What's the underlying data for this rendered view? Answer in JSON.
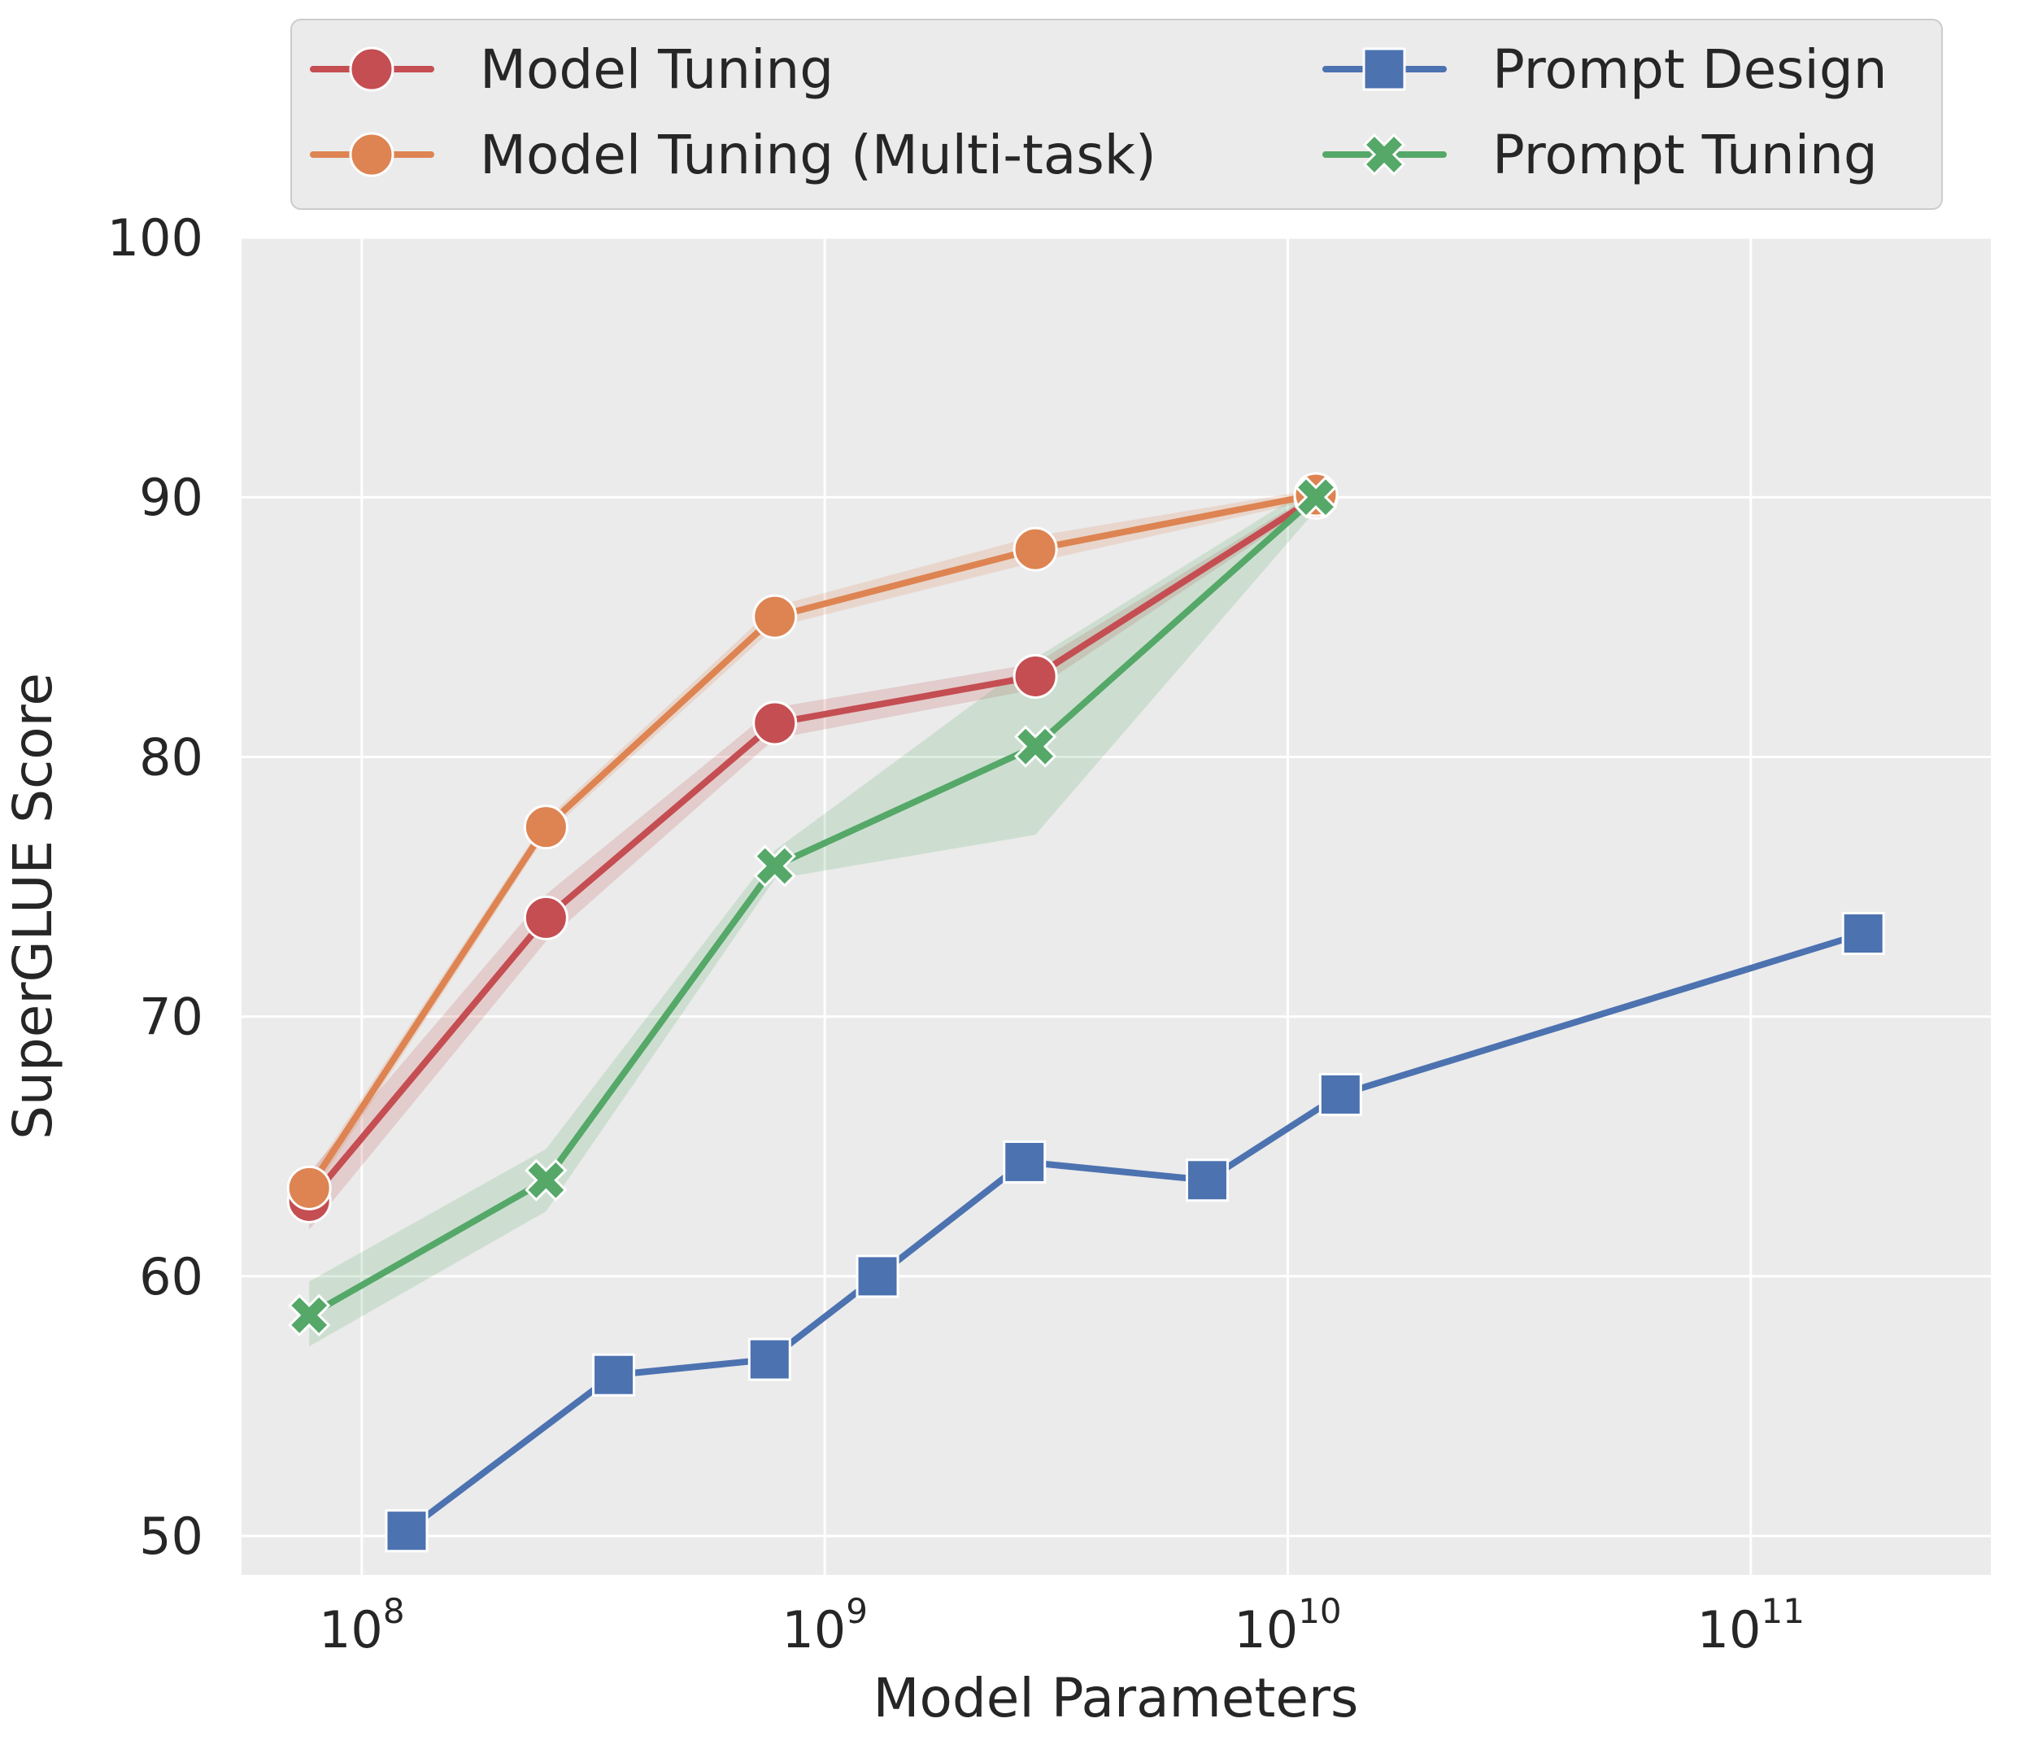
{
  "chart_data": {
    "type": "line",
    "xlabel": "Model Parameters",
    "ylabel": "SuperGLUE Score",
    "xscale": "log",
    "xlim": [
      55000000,
      330000000000
    ],
    "ylim": [
      48.5,
      100
    ],
    "x_ticks": [
      {
        "value": 100000000,
        "base": "10",
        "exp": "8"
      },
      {
        "value": 1000000000,
        "base": "10",
        "exp": "9"
      },
      {
        "value": 10000000000,
        "base": "10",
        "exp": "10"
      },
      {
        "value": 100000000000,
        "base": "10",
        "exp": "11"
      }
    ],
    "y_ticks": [
      {
        "value": 50,
        "label": "50"
      },
      {
        "value": 60,
        "label": "60"
      },
      {
        "value": 70,
        "label": "70"
      },
      {
        "value": 80,
        "label": "80"
      },
      {
        "value": 90,
        "label": "90"
      },
      {
        "value": 100,
        "label": "100"
      }
    ],
    "grid": true,
    "legend_position": "top, above plot",
    "series": [
      {
        "name": "Model Tuning",
        "color": "#c44e52",
        "marker": "circle",
        "x": [
          77000000,
          250000000,
          780000000,
          2850000000,
          11500000000
        ],
        "y": [
          62.9,
          73.8,
          81.3,
          83.1,
          90.0
        ],
        "band_low": [
          61.8,
          72.9,
          80.7,
          82.6,
          89.8
        ],
        "band_high": [
          64.0,
          74.7,
          81.9,
          83.6,
          90.2
        ]
      },
      {
        "name": "Model Tuning (Multi-task)",
        "color": "#dd8452",
        "marker": "circle",
        "x": [
          77000000,
          250000000,
          780000000,
          2850000000,
          11500000000
        ],
        "y": [
          63.4,
          77.3,
          85.4,
          88.0,
          90.1
        ],
        "band_low": [
          63.0,
          77.0,
          85.0,
          87.5,
          89.9
        ],
        "band_high": [
          63.8,
          77.6,
          85.8,
          88.5,
          90.3
        ]
      },
      {
        "name": "Prompt Design",
        "color": "#4c72b0",
        "marker": "square",
        "x": [
          125000000,
          350000000,
          760000000,
          1300000000,
          2700000000,
          6700000000,
          13000000000,
          175000000000
        ],
        "y": [
          50.2,
          56.2,
          56.8,
          60.0,
          64.4,
          63.7,
          67.0,
          73.2
        ]
      },
      {
        "name": "Prompt Tuning",
        "color": "#55a868",
        "marker": "x",
        "x": [
          77000000,
          250000000,
          780000000,
          2850000000,
          11500000000
        ],
        "y": [
          58.5,
          63.7,
          75.8,
          80.4,
          90.0
        ],
        "band_low": [
          57.3,
          62.5,
          75.3,
          77.0,
          89.5
        ],
        "band_high": [
          59.8,
          64.9,
          76.4,
          83.8,
          90.5
        ]
      }
    ]
  }
}
